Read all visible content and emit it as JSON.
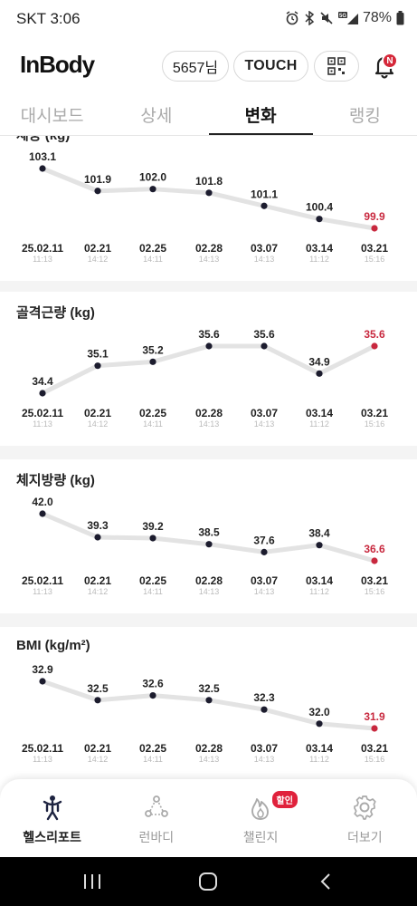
{
  "status": {
    "time": "SKT 3:06",
    "battery": "78%"
  },
  "header": {
    "logo": "InBody",
    "user_label": "5657님",
    "touch_label": "TOUCH",
    "notification_badge": "N"
  },
  "tabs": [
    {
      "label": "대시보드",
      "active": false
    },
    {
      "label": "상세",
      "active": false
    },
    {
      "label": "변화",
      "active": true
    },
    {
      "label": "랭킹",
      "active": false
    }
  ],
  "x_axis": {
    "dates": [
      "25.02.11",
      "02.21",
      "02.25",
      "02.28",
      "03.07",
      "03.14",
      "03.21"
    ],
    "times": [
      "11:13",
      "14:12",
      "14:11",
      "14:13",
      "14:13",
      "11:12",
      "15:16"
    ]
  },
  "colors": {
    "line": "#e3e3e3",
    "point": "#1c1c2e",
    "highlight": "#c8283e",
    "accent": "#d5283a"
  },
  "chart_data": [
    {
      "type": "line",
      "title": "체중 (kg)",
      "categories": [
        "25.02.11",
        "02.21",
        "02.25",
        "02.28",
        "03.07",
        "03.14",
        "03.21"
      ],
      "values": [
        103.1,
        101.9,
        102.0,
        101.8,
        101.1,
        100.4,
        99.9
      ],
      "labels": [
        "103.1",
        "101.9",
        "102.0",
        "101.8",
        "101.1",
        "100.4",
        "99.9"
      ]
    },
    {
      "type": "line",
      "title": "골격근량 (kg)",
      "categories": [
        "25.02.11",
        "02.21",
        "02.25",
        "02.28",
        "03.07",
        "03.14",
        "03.21"
      ],
      "values": [
        34.4,
        35.1,
        35.2,
        35.6,
        35.6,
        34.9,
        35.6
      ],
      "labels": [
        "34.4",
        "35.1",
        "35.2",
        "35.6",
        "35.6",
        "34.9",
        "35.6"
      ]
    },
    {
      "type": "line",
      "title": "체지방량 (kg)",
      "categories": [
        "25.02.11",
        "02.21",
        "02.25",
        "02.28",
        "03.07",
        "03.14",
        "03.21"
      ],
      "values": [
        42.0,
        39.3,
        39.2,
        38.5,
        37.6,
        38.4,
        36.6
      ],
      "labels": [
        "42.0",
        "39.3",
        "39.2",
        "38.5",
        "37.6",
        "38.4",
        "36.6"
      ]
    },
    {
      "type": "line",
      "title": "BMI (kg/m²)",
      "categories": [
        "25.02.11",
        "02.21",
        "02.25",
        "02.28",
        "03.07",
        "03.14",
        "03.21"
      ],
      "values": [
        32.9,
        32.5,
        32.6,
        32.5,
        32.3,
        32.0,
        31.9
      ],
      "labels": [
        "32.9",
        "32.5",
        "32.6",
        "32.5",
        "32.3",
        "32.0",
        "31.9"
      ]
    }
  ],
  "bottom_nav": [
    {
      "label": "헬스리포트",
      "icon": "person-icon",
      "active": true
    },
    {
      "label": "런바디",
      "icon": "runbody-icon",
      "active": false
    },
    {
      "label": "챌린지",
      "icon": "flame-icon",
      "active": false,
      "badge": "할인"
    },
    {
      "label": "더보기",
      "icon": "gear-icon",
      "active": false
    }
  ]
}
